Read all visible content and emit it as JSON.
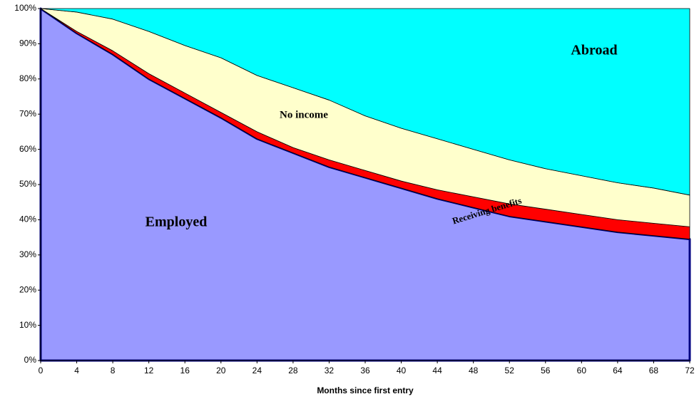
{
  "chart_data": {
    "type": "stacked-area",
    "x_label": "Months since first entry",
    "x": [
      0,
      4,
      8,
      12,
      16,
      20,
      24,
      28,
      32,
      36,
      40,
      44,
      48,
      52,
      56,
      60,
      64,
      68,
      72
    ],
    "series": [
      {
        "name": "Employed",
        "color": "#9999ff",
        "values": [
          100,
          93,
          87,
          80,
          74.5,
          69,
          63,
          59,
          55,
          52,
          49,
          46,
          43.5,
          41,
          39.5,
          38,
          36.5,
          35.5,
          34.5
        ]
      },
      {
        "name": "Receiving benefits",
        "color": "#ff0000",
        "values": [
          0,
          0.5,
          1,
          1.5,
          1.5,
          1.5,
          2,
          1.5,
          2,
          2,
          2,
          2.5,
          3,
          3.5,
          3.5,
          3.5,
          3.5,
          3.5,
          3.5
        ]
      },
      {
        "name": "No income",
        "color": "#ffffcc",
        "values": [
          0,
          5.5,
          9,
          12,
          13.5,
          15.5,
          16,
          17,
          17,
          15.5,
          15,
          14.5,
          13.5,
          12.5,
          11.5,
          11,
          10.5,
          10,
          9
        ]
      },
      {
        "name": "Abroad",
        "color": "#00ffff",
        "values": [
          0,
          1,
          3,
          6.5,
          10.5,
          14,
          19,
          22.5,
          26,
          30.5,
          34,
          37,
          40,
          43,
          45.5,
          47.5,
          49.5,
          51,
          53
        ]
      }
    ],
    "xlim": [
      0,
      72
    ],
    "xticks": [
      0,
      4,
      8,
      12,
      16,
      20,
      24,
      28,
      32,
      36,
      40,
      44,
      48,
      52,
      56,
      60,
      64,
      68,
      72
    ],
    "ylim": [
      0,
      100
    ],
    "yticks": [
      {
        "value": 0,
        "label": "0%"
      },
      {
        "value": 10,
        "label": "10%"
      },
      {
        "value": 20,
        "label": "20%"
      },
      {
        "value": 30,
        "label": "30%"
      },
      {
        "value": 40,
        "label": "40%"
      },
      {
        "value": 50,
        "label": "50%"
      },
      {
        "value": 60,
        "label": "60%"
      },
      {
        "value": 70,
        "label": "70%"
      },
      {
        "value": 80,
        "label": "80%"
      },
      {
        "value": 90,
        "label": "90%"
      },
      {
        "value": 100,
        "label": "100%"
      }
    ]
  }
}
